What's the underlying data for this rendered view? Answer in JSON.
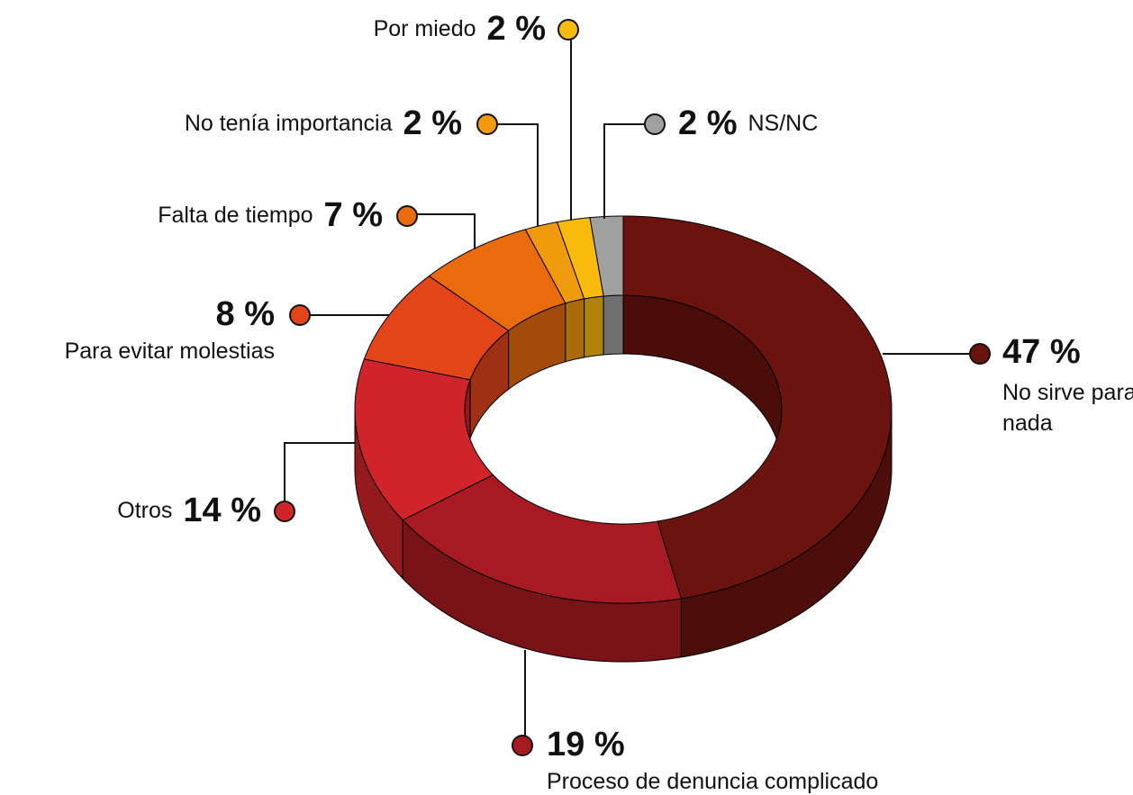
{
  "chart_data": {
    "type": "donut",
    "categories": [
      "No sirve para nada",
      "Proceso de denuncia complicado",
      "Otros",
      "Para evitar molestias",
      "Falta de tiempo",
      "No tenía importancia",
      "Por miedo",
      "NS/NC"
    ],
    "values": [
      47,
      19,
      14,
      8,
      7,
      2,
      2,
      2
    ],
    "value_labels": [
      "47 %",
      "19 %",
      "14 %",
      "8 %",
      "7 %",
      "2 %",
      "2 %",
      "2 %"
    ],
    "colors": [
      "#6b130e",
      "#a71a22",
      "#cf2429",
      "#e34418",
      "#e96b0c",
      "#f19a0e",
      "#f8bb0c",
      "#a0a0a0"
    ]
  }
}
